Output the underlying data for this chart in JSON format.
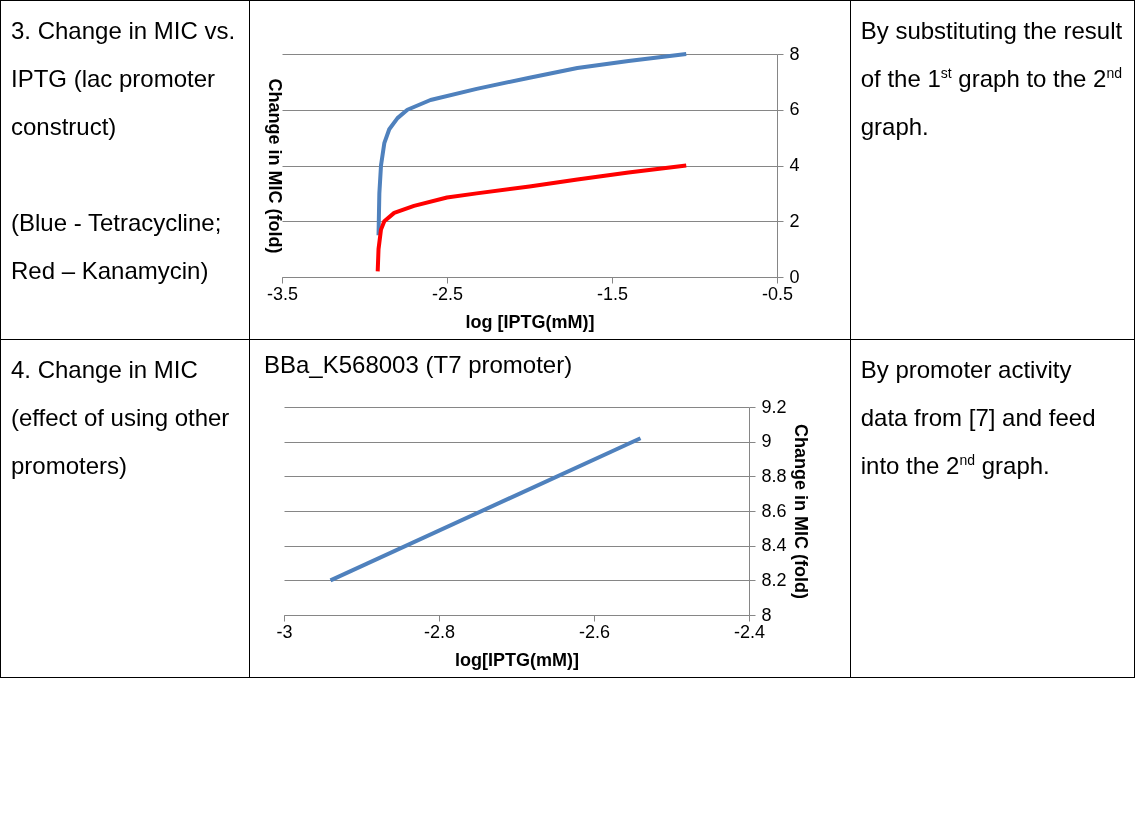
{
  "chart_data": [
    {
      "type": "line",
      "xlabel": "log [IPTG(mM)]",
      "ylabel": "Change in MIC (fold)",
      "xlim": [
        -3.5,
        -0.5
      ],
      "xticks": [
        -3.5,
        -2.5,
        -1.5,
        -0.5
      ],
      "ylim": [
        0,
        8
      ],
      "yticks": [
        0,
        2,
        4,
        6,
        8
      ],
      "grid": "y",
      "line_style": "solid",
      "series": [
        {
          "color": "#4f81bd",
          "x": [
            -2.915,
            -2.91,
            -2.9,
            -2.88,
            -2.85,
            -2.8,
            -2.74,
            -2.6,
            -2.32,
            -2,
            -1.71,
            -1.4,
            -1.05
          ],
          "values": [
            1.5,
            3,
            4,
            4.8,
            5.3,
            5.7,
            6,
            6.35,
            6.75,
            7.15,
            7.5,
            7.75,
            8
          ]
        },
        {
          "color": "#ff0000",
          "x": [
            -2.92,
            -2.915,
            -2.9,
            -2.88,
            -2.82,
            -2.7,
            -2.5,
            -2.32,
            -2,
            -1.71,
            -1.4,
            -1.05
          ],
          "values": [
            0.2,
            1,
            1.7,
            2,
            2.3,
            2.55,
            2.85,
            3,
            3.25,
            3.5,
            3.75,
            4
          ]
        }
      ],
      "annotations": [
        "3. Change in MIC vs. IPTG (lac promoter construct)",
        "(Blue - Tetracycline; Red – Kanamycin)",
        "By substituting the result of the 1$^{st}$ graph to the 2$^{nd}$ graph."
      ]
    },
    {
      "type": "line",
      "title": "BBa_K568003 (T7 promoter)",
      "xlabel": "log[IPTG(mM)]",
      "ylabel": "Change in MIC (fold)",
      "xlim": [
        -3,
        -2.4
      ],
      "xticks": [
        -3,
        -2.8,
        -2.6,
        -2.4
      ],
      "ylim": [
        8,
        9.2
      ],
      "yticks": [
        8,
        8.2,
        8.4,
        8.6,
        8.8,
        9,
        9.2
      ],
      "grid": "y",
      "line_style": "solid",
      "series": [
        {
          "color": "#4f81bd",
          "x": [
            -2.94,
            -2.54
          ],
          "values": [
            8.2,
            9.02
          ]
        }
      ],
      "annotations": [
        "4. Change in MIC (effect of using other promoters)",
        "By promoter activity data from [7] and feed into the 2$^{nd}$ graph."
      ]
    }
  ]
}
